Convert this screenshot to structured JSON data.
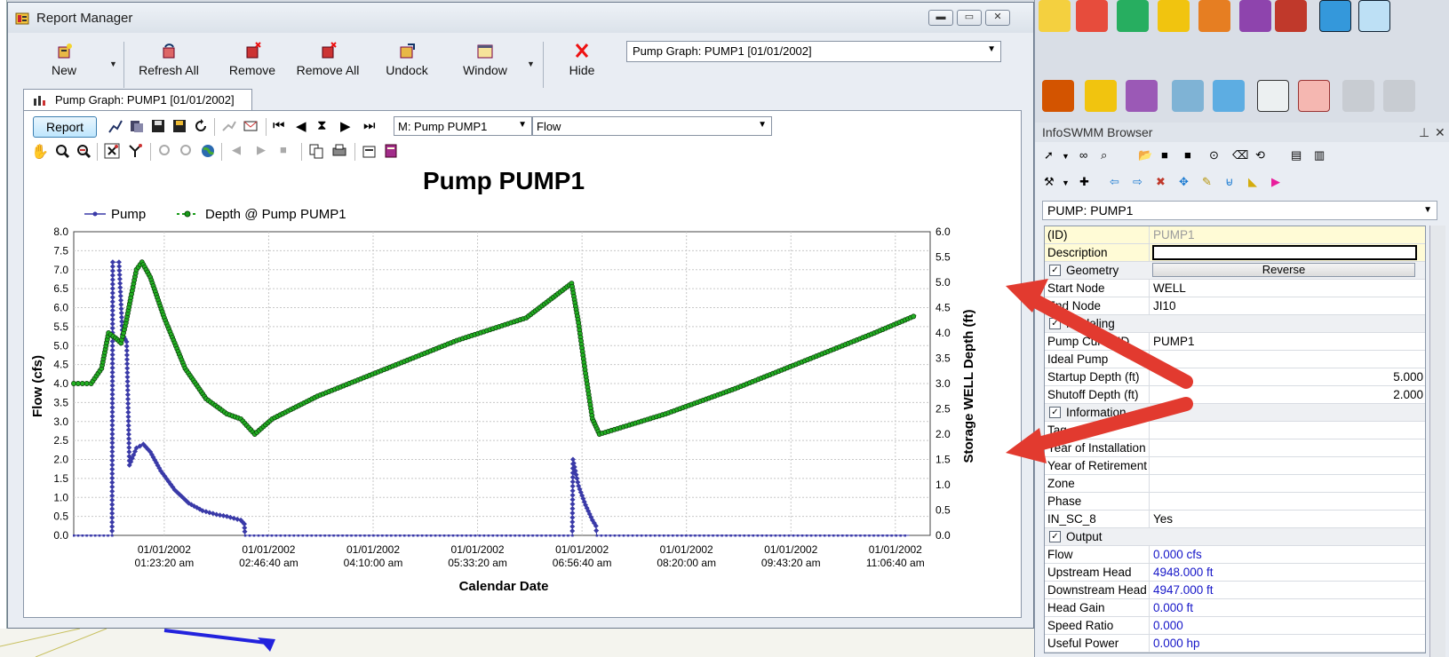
{
  "report_manager": {
    "title": "Report Manager",
    "toolbar": {
      "new_label": "New",
      "refresh_all_label": "Refresh All",
      "remove_label": "Remove",
      "remove_all_label": "Remove All",
      "undock_label": "Undock",
      "window_label": "Window",
      "hide_label": "Hide"
    },
    "report_select": "Pump Graph: PUMP1 [01/01/2002]",
    "tab_label": "Pump Graph: PUMP1 [01/01/2002]",
    "graph_toolbar": {
      "report_button": "Report",
      "element_select": "M: Pump PUMP1",
      "parameter_select": "Flow"
    }
  },
  "chart_data": {
    "type": "line",
    "title": "Pump PUMP1",
    "xlabel": "Calendar Date",
    "ylabel": "Flow (cfs)",
    "y2label": "Storage WELL Depth (ft)",
    "x_tick_labels": [
      [
        "01/01/2002",
        "01:23:20 am"
      ],
      [
        "01/01/2002",
        "02:46:40 am"
      ],
      [
        "01/01/2002",
        "04:10:00 am"
      ],
      [
        "01/01/2002",
        "05:33:20 am"
      ],
      [
        "01/01/2002",
        "06:56:40 am"
      ],
      [
        "01/01/2002",
        "08:20:00 am"
      ],
      [
        "01/01/2002",
        "09:43:20 am"
      ],
      [
        "01/01/2002",
        "11:06:40 am"
      ]
    ],
    "ylim": [
      0,
      8
    ],
    "y2lim": [
      0,
      6
    ],
    "y_ticks": [
      "0.0",
      "0.5",
      "1.0",
      "1.5",
      "2.0",
      "2.5",
      "3.0",
      "3.5",
      "4.0",
      "4.5",
      "5.0",
      "5.5",
      "6.0",
      "6.5",
      "7.0",
      "7.5",
      "8.0"
    ],
    "y2_ticks": [
      "0.0",
      "0.5",
      "1.0",
      "1.5",
      "2.0",
      "2.5",
      "3.0",
      "3.5",
      "4.0",
      "4.5",
      "5.0",
      "5.5",
      "6.0"
    ],
    "grid": true,
    "legend": "top-left",
    "series": [
      {
        "name": "Pump",
        "axis": "left",
        "color": "#3a3aa8",
        "points": [
          [
            0,
            0
          ],
          [
            0.55,
            0
          ],
          [
            0.56,
            7.2
          ],
          [
            0.65,
            7.2
          ],
          [
            0.7,
            5.3
          ],
          [
            0.76,
            5.1
          ],
          [
            0.8,
            1.85
          ],
          [
            0.9,
            2.3
          ],
          [
            1.0,
            2.4
          ],
          [
            1.1,
            2.2
          ],
          [
            1.25,
            1.7
          ],
          [
            1.45,
            1.2
          ],
          [
            1.65,
            0.85
          ],
          [
            1.85,
            0.65
          ],
          [
            2.05,
            0.55
          ],
          [
            2.2,
            0.5
          ],
          [
            2.4,
            0.4
          ],
          [
            2.45,
            0.3
          ],
          [
            2.46,
            0
          ],
          [
            7.16,
            0
          ],
          [
            7.17,
            2.0
          ],
          [
            7.25,
            1.3
          ],
          [
            7.35,
            0.8
          ],
          [
            7.45,
            0.4
          ],
          [
            7.5,
            0.25
          ],
          [
            7.51,
            0
          ],
          [
            12,
            0
          ]
        ]
      },
      {
        "name": "Depth @ Pump PUMP1",
        "axis": "right",
        "color": "#1a9c1a",
        "points": [
          [
            0,
            3.0
          ],
          [
            0.25,
            3.0
          ],
          [
            0.4,
            3.3
          ],
          [
            0.5,
            4.0
          ],
          [
            0.6,
            3.9
          ],
          [
            0.68,
            3.8
          ],
          [
            0.75,
            4.2
          ],
          [
            0.82,
            4.7
          ],
          [
            0.9,
            5.25
          ],
          [
            0.98,
            5.4
          ],
          [
            1.1,
            5.1
          ],
          [
            1.3,
            4.3
          ],
          [
            1.6,
            3.3
          ],
          [
            1.9,
            2.7
          ],
          [
            2.2,
            2.4
          ],
          [
            2.4,
            2.3
          ],
          [
            2.6,
            2.0
          ],
          [
            2.85,
            2.3
          ],
          [
            3.5,
            2.75
          ],
          [
            4.5,
            3.3
          ],
          [
            5.5,
            3.85
          ],
          [
            6.5,
            4.3
          ],
          [
            7.15,
            4.98
          ],
          [
            7.25,
            4.2
          ],
          [
            7.35,
            3.2
          ],
          [
            7.45,
            2.3
          ],
          [
            7.55,
            2.0
          ],
          [
            8.5,
            2.4
          ],
          [
            9.5,
            2.9
          ],
          [
            10.5,
            3.45
          ],
          [
            11.5,
            4.0
          ],
          [
            12.1,
            4.35
          ]
        ]
      }
    ]
  },
  "right_toolbar": {
    "icons": [
      "node-tool-icon",
      "node-edit-icon",
      "link-tool-icon",
      "map-color-icon",
      "map-paint-icon",
      "report-icon",
      "table-report-icon",
      "3d-view-icon",
      "binoculars-icon",
      "pencil-edit-icon",
      "bulk-edit-icon",
      "bulk-delete-icon",
      "edit-link-icon",
      "reverse-link-icon",
      "select-tool-icon",
      "erase-tool-icon",
      "undo-icon",
      "redo-icon"
    ]
  },
  "infoswmm_browser": {
    "title": "InfoSWMM Browser",
    "selected_element": "PUMP: PUMP1",
    "rows": [
      {
        "name": "(ID)",
        "value": "PUMP1",
        "style": "grey-yellow"
      },
      {
        "name": "Description",
        "value": "",
        "style": "desc"
      },
      {
        "name": "Geometry",
        "value": "Reverse",
        "style": "section-button"
      },
      {
        "name": "Start Node",
        "value": "WELL"
      },
      {
        "name": "End Node",
        "value": "JI10"
      },
      {
        "name": "Modeling",
        "value": "",
        "style": "section"
      },
      {
        "name": "Pump Curve ID",
        "value": "PUMP1"
      },
      {
        "name": "Ideal Pump",
        "value": ""
      },
      {
        "name": "Startup Depth (ft)",
        "value": "5.000",
        "style": "right"
      },
      {
        "name": "Shutoff Depth (ft)",
        "value": "2.000",
        "style": "right"
      },
      {
        "name": "Information",
        "value": "",
        "style": "section"
      },
      {
        "name": "Tag",
        "value": ""
      },
      {
        "name": "Year of Installation",
        "value": ""
      },
      {
        "name": "Year of Retirement",
        "value": ""
      },
      {
        "name": "Zone",
        "value": ""
      },
      {
        "name": "Phase",
        "value": ""
      },
      {
        "name": "IN_SC_8",
        "value": "Yes"
      },
      {
        "name": "Output",
        "value": "",
        "style": "section"
      },
      {
        "name": "Flow",
        "value": "0.000 cfs",
        "style": "blue"
      },
      {
        "name": "Upstream Head",
        "value": "4948.000 ft",
        "style": "blue"
      },
      {
        "name": "Downstream Head",
        "value": "4947.000 ft",
        "style": "blue"
      },
      {
        "name": "Head Gain",
        "value": "0.000 ft",
        "style": "blue"
      },
      {
        "name": "Speed Ratio",
        "value": "0.000",
        "style": "blue"
      },
      {
        "name": "Useful Power",
        "value": "0.000 hp",
        "style": "blue"
      }
    ]
  },
  "annotations": {
    "arrow_color": "#e23a2f"
  }
}
